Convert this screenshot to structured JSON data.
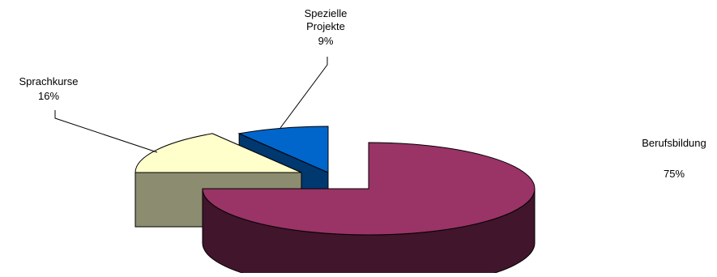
{
  "chart_data": {
    "type": "pie",
    "style": "3d-exploded",
    "title": "",
    "legend": "none",
    "categories": [
      "Berufsbildung",
      "Sprachkurse",
      "Spezielle Projekte"
    ],
    "values": [
      75,
      16,
      9
    ],
    "unit": "%",
    "series": [
      {
        "values": [
          75,
          16,
          9
        ],
        "colors": [
          "#9A3366",
          "#FFFFCC",
          "#0066CC"
        ]
      }
    ],
    "labels": [
      {
        "category": "Berufsbildung",
        "name_lines": [
          "Berufsbildung"
        ],
        "value_text": "75%"
      },
      {
        "category": "Sprachkurse",
        "name_lines": [
          "Sprachkurse"
        ],
        "value_text": "16%"
      },
      {
        "category": "Spezielle Projekte",
        "name_lines": [
          "Spezielle",
          "Projekte"
        ],
        "value_text": "9%"
      }
    ]
  }
}
